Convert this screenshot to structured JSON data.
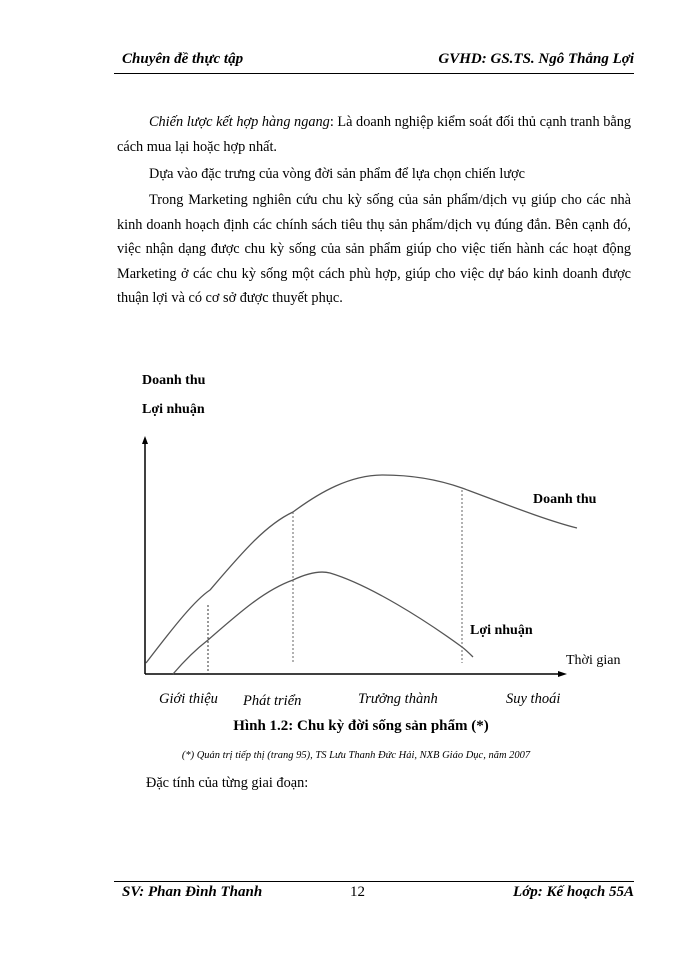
{
  "header": {
    "left": "Chuyên đề thực tập",
    "right": "GVHD:  GS.TS.  Ngô Thắng Lợi"
  },
  "body": {
    "p1_italic": "Chiến lược kết hợp hàng ngang",
    "p1_rest": ": Là doanh nghiệp kiểm soát đối thủ cạnh tranh bằng cách mua lại hoặc hợp nhất.",
    "p2": "Dựa vào đặc trưng của vòng đời sản phẩm để lựa chọn chiến lược",
    "p3": "Trong Marketing nghiên cứu chu kỳ sống của sản phẩm/dịch vụ giúp cho các nhà kinh doanh hoạch định các chính sách tiêu thụ sản phẩm/dịch vụ đúng đắn. Bên cạnh đó, việc nhận dạng được chu kỳ sống của sản phẩm giúp cho việc tiến hành các hoạt động Marketing ở các chu kỳ sống một cách phù hợp, giúp cho việc dự báo kinh doanh được thuận lợi và có cơ sở được thuyết phục."
  },
  "figure": {
    "y_label_1": "Doanh thu",
    "y_label_2": "Lợi nhuận",
    "curve_revenue_label": "Doanh thu",
    "curve_profit_label": "Lợi nhuận",
    "x_label": "Thời  gian",
    "stages": [
      "Giới thiệu",
      "Phát triển",
      "Trưởng thành",
      "Suy thoái"
    ],
    "caption": "Hình 1.2: Chu kỳ đời sống sản phẩm   (*)",
    "source": "(*) Quản trị tiếp thị (trang 95), TS Lưu Thanh Đức Hải, NXB Giáo Dục, năm 2007"
  },
  "after": "Đặc tính của từng giai đoạn:",
  "footer": {
    "left": "SV: Phan Đình Thanh",
    "page": "12",
    "right": "Lớp: Kế hoạch 55A"
  }
}
